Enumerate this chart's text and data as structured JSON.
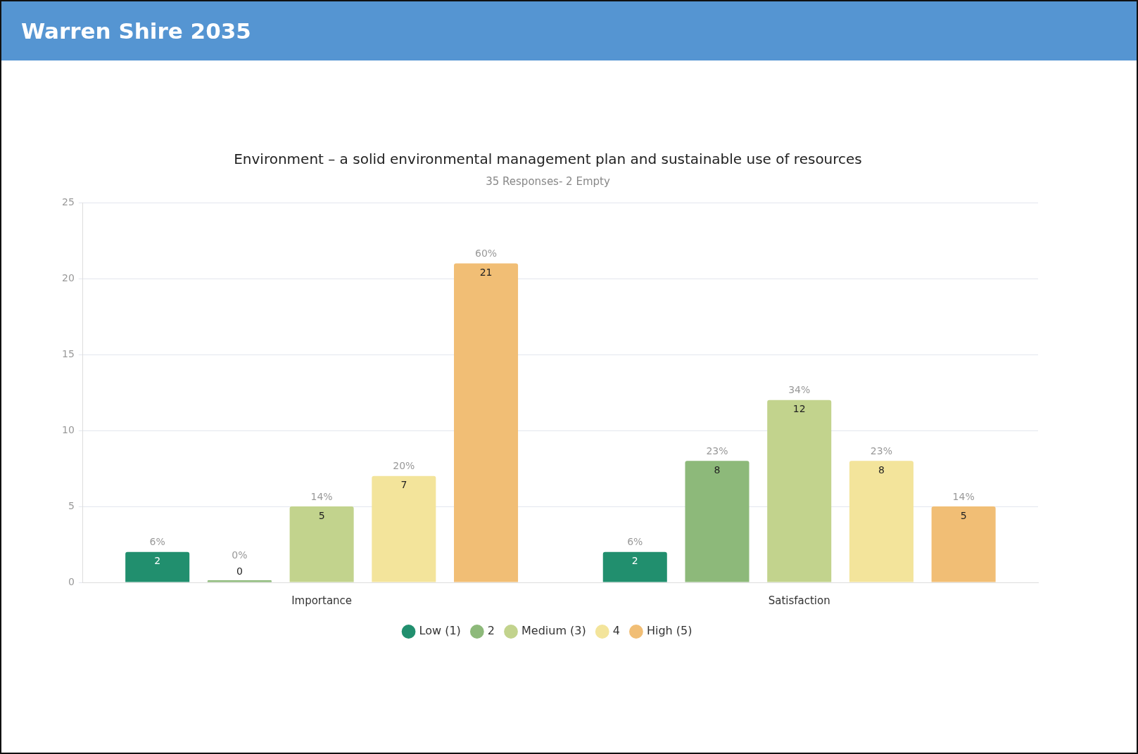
{
  "chart_data": {
    "type": "bar",
    "title": "Environment – a solid environmental management plan and sustainable use of resources",
    "subtitle": "35 Responses- 2 Empty",
    "annotations": [
      "Warren Shire 2035",
      "6%",
      "0%",
      "14%",
      "20%",
      "60%",
      "6%",
      "23%",
      "34%",
      "23%",
      "14%"
    ],
    "categories": [
      "Importance",
      "Satisfaction"
    ],
    "series": [
      {
        "name": "Low (1)",
        "color": "#218f6e",
        "values": [
          2,
          2
        ]
      },
      {
        "name": "2",
        "color": "#8db97a",
        "values": [
          0,
          8
        ]
      },
      {
        "name": "Medium (3)",
        "color": "#c2d38d",
        "values": [
          5,
          12
        ]
      },
      {
        "name": "4",
        "color": "#f3e49b",
        "values": [
          7,
          8
        ]
      },
      {
        "name": "High (5)",
        "color": "#f1be75",
        "values": [
          21,
          5
        ]
      }
    ],
    "ylim": [
      0,
      25
    ],
    "yticks": [
      0,
      5,
      10,
      15,
      20,
      25
    ],
    "grid": "y",
    "legend": "bottom",
    "data_labels": true
  }
}
